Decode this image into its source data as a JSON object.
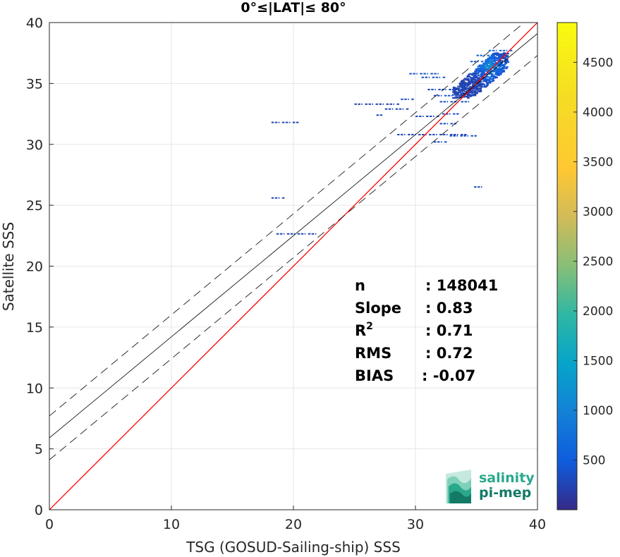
{
  "chart_data": {
    "type": "scatter",
    "title": "0°≤|LAT|≤ 80°",
    "xlabel": "TSG (GOSUD-Sailing-ship) SSS",
    "ylabel": "Satellite SSS",
    "xlim": [
      0,
      40
    ],
    "ylim": [
      0,
      40
    ],
    "xticks": [
      "0",
      "10",
      "20",
      "30",
      "40"
    ],
    "yticks": [
      "0",
      "5",
      "10",
      "15",
      "20",
      "25",
      "30",
      "35",
      "40"
    ],
    "grid": true,
    "colorbar": {
      "range": [
        0,
        4900
      ],
      "ticks": [
        "500",
        "1000",
        "1500",
        "2000",
        "2500",
        "3000",
        "3500",
        "4000",
        "4500"
      ],
      "colormap": "parula"
    },
    "lines": [
      {
        "name": "identity",
        "color": "#ff0000",
        "x": [
          0,
          40
        ],
        "y": [
          0,
          40
        ]
      },
      {
        "name": "fit",
        "color": "#000000",
        "x": [
          0,
          40
        ],
        "y": [
          5.9,
          39.1
        ]
      },
      {
        "name": "fit-upper",
        "color": "#000000",
        "dashed": true,
        "x": [
          0,
          40
        ],
        "y": [
          7.7,
          40.9
        ]
      },
      {
        "name": "fit-lower",
        "color": "#000000",
        "dashed": true,
        "x": [
          0,
          40
        ],
        "y": [
          4.1,
          37.3
        ]
      }
    ],
    "stats": [
      {
        "label": "n",
        "value": ": 148041"
      },
      {
        "label": "Slope",
        "value": ": 0.83"
      },
      {
        "label": "R",
        "sup": "2",
        "value": ": 0.71"
      },
      {
        "label": "RMS",
        "value": ": 0.72"
      },
      {
        "label": "BIAS",
        "value": ": -0.07"
      }
    ],
    "segments": [
      {
        "x": [
          18.2,
          19.2
        ],
        "y": 25.6,
        "density": 300
      },
      {
        "x": [
          18.6,
          22.0
        ],
        "y": 22.65,
        "density": 250
      },
      {
        "x": [
          18.2,
          20.5
        ],
        "y": 31.8,
        "density": 250
      },
      {
        "x": [
          25.0,
          28.5
        ],
        "y": 33.3,
        "density": 200
      },
      {
        "x": [
          27.5,
          29.5
        ],
        "y": 32.9,
        "density": 250
      },
      {
        "x": [
          26.8,
          27.1
        ],
        "y": 32.4,
        "density": 300
      },
      {
        "x": [
          30.0,
          32.0
        ],
        "y": 32.3,
        "density": 300
      },
      {
        "x": [
          28.5,
          34.0
        ],
        "y": 30.8,
        "density": 300
      },
      {
        "x": [
          31.5,
          32.5
        ],
        "y": 30.2,
        "density": 350
      },
      {
        "x": [
          32.8,
          35.0
        ],
        "y": 30.7,
        "density": 350
      },
      {
        "x": [
          28.8,
          29.8
        ],
        "y": 33.7,
        "density": 300
      },
      {
        "x": [
          29.5,
          32.0
        ],
        "y": 35.8,
        "density": 400
      },
      {
        "x": [
          30.5,
          32.5
        ],
        "y": 35.5,
        "density": 350
      },
      {
        "x": [
          31.0,
          33.5
        ],
        "y": 34.5,
        "density": 350
      },
      {
        "x": [
          31.5,
          33.8
        ],
        "y": 34.0,
        "density": 400
      },
      {
        "x": [
          32.0,
          34.5
        ],
        "y": 33.5,
        "density": 400
      },
      {
        "x": [
          34.8,
          35.4
        ],
        "y": 26.5,
        "density": 300
      },
      {
        "x": [
          32.2,
          33.5
        ],
        "y": 32.5,
        "density": 400
      },
      {
        "x": [
          32.0,
          33.2
        ],
        "y": 31.7,
        "density": 350
      },
      {
        "x": [
          34.5,
          36.0
        ],
        "y": 36.8,
        "density": 500
      },
      {
        "x": [
          35.0,
          37.5
        ],
        "y": 37.3,
        "density": 600
      },
      {
        "x": [
          36.0,
          38.0
        ],
        "y": 37.7,
        "density": 500
      }
    ],
    "cluster": {
      "x": [
        33.0,
        37.5
      ],
      "y": [
        33.8,
        37.5
      ],
      "peak_density": 1200
    }
  },
  "logo": {
    "line1": "salinity",
    "line2": "pi-mep"
  }
}
